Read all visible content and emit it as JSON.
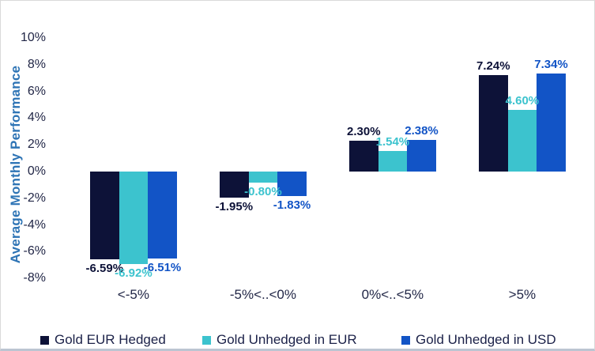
{
  "chart_data": {
    "type": "bar",
    "title": "",
    "xlabel": "",
    "ylabel": "Average Monthly Performance",
    "categories": [
      "<-5%",
      "-5%<..<0%",
      "0%<..<5%",
      ">5%"
    ],
    "series": [
      {
        "name": "Gold EUR Hedged",
        "color": "#0d1238",
        "values": [
          -6.59,
          -1.95,
          2.3,
          7.24
        ],
        "labels": [
          "-6.59%",
          "-1.95%",
          "2.30%",
          "7.24%"
        ]
      },
      {
        "name": "Gold Unhedged in EUR",
        "color": "#3cc3ce",
        "values": [
          -6.92,
          -0.8,
          1.54,
          4.6
        ],
        "labels": [
          "-6.92%",
          "-0.80%",
          "1.54%",
          "4.60%"
        ]
      },
      {
        "name": "Gold Unhedged in USD",
        "color": "#1254c6",
        "values": [
          -6.51,
          -1.83,
          2.38,
          7.34
        ],
        "labels": [
          "-6.51%",
          "-1.83%",
          "2.38%",
          "7.34%"
        ]
      }
    ],
    "y_ticks": [
      "10%",
      "8%",
      "6%",
      "4%",
      "2%",
      "0%",
      "-2%",
      "-4%",
      "-6%",
      "-8%"
    ],
    "y_tick_values": [
      10,
      8,
      6,
      4,
      2,
      0,
      -2,
      -4,
      -6,
      -8
    ],
    "ylim": [
      -8,
      10
    ],
    "grid": false,
    "axis_lines": false,
    "legend_position": "bottom"
  },
  "colors": {
    "axis_title": "#2e74b5",
    "tick_text": "#222747",
    "legend_text": "#1b2148",
    "background": "#ffffff",
    "frame_border": "#d9d9d9",
    "bottom_rule": "#bcc5d2"
  }
}
